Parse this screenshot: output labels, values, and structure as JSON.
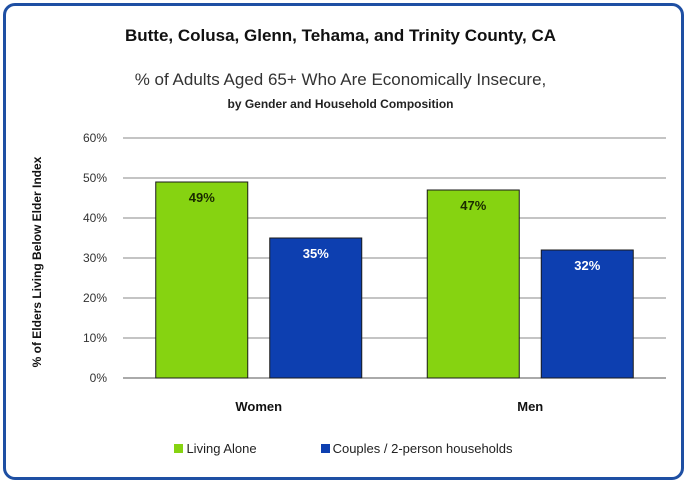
{
  "chart_data": {
    "type": "bar",
    "title": "Butte, Colusa, Glenn, Tehama, and Trinity County, CA",
    "subtitle": "% of Adults Aged 65+ Who Are Economically Insecure,",
    "subtitle2": "by Gender and Household Composition",
    "xlabel": "",
    "ylabel": "% of Elders Living Below  Elder Index",
    "categories": [
      "Women",
      "Men"
    ],
    "series": [
      {
        "name": "Living Alone",
        "values": [
          49,
          47
        ],
        "color": "#86d311",
        "labels": [
          "49%",
          "47%"
        ]
      },
      {
        "name": "Couples / 2-person households",
        "values": [
          35,
          32
        ],
        "color": "#0d3fb0",
        "labels": [
          "35%",
          "32%"
        ]
      }
    ],
    "ylim": [
      0,
      60
    ],
    "yticks": [
      "0%",
      "10%",
      "20%",
      "30%",
      "40%",
      "50%",
      "60%"
    ],
    "grid": true,
    "legend_position": "bottom"
  }
}
